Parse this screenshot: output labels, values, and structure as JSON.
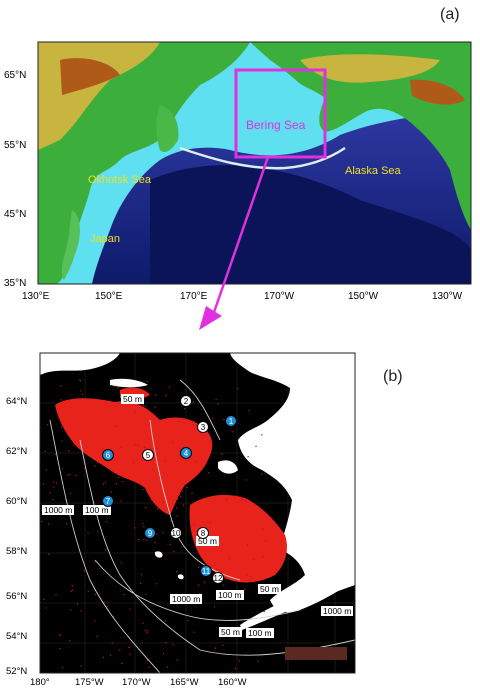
{
  "panel_a": {
    "label": "(a)",
    "lat_ticks": [
      "65°N",
      "55°N",
      "45°N",
      "35°N"
    ],
    "lon_ticks": [
      "130°E",
      "150°E",
      "170°E",
      "170°W",
      "150°W",
      "130°W"
    ],
    "places": {
      "bering": "Bering Sea",
      "okhotsk": "Okhotsk Sea",
      "alaska": "Alaska Sea",
      "japan": "Japan"
    },
    "colors": {
      "box": "#e030e0",
      "place_text": "#f0e020"
    }
  },
  "panel_b": {
    "label": "(b)",
    "lat_ticks": [
      "64°N",
      "62°N",
      "60°N",
      "58°N",
      "56°N",
      "54°N",
      "52°N"
    ],
    "lon_ticks": [
      "180°",
      "175°W",
      "170°W",
      "165°W",
      "160°W"
    ],
    "stations": [
      {
        "id": "1",
        "color": "blue"
      },
      {
        "id": "2",
        "color": "white"
      },
      {
        "id": "3",
        "color": "white"
      },
      {
        "id": "4",
        "color": "blue"
      },
      {
        "id": "5",
        "color": "white"
      },
      {
        "id": "6",
        "color": "blue"
      },
      {
        "id": "7",
        "color": "blue"
      },
      {
        "id": "8",
        "color": "white"
      },
      {
        "id": "9",
        "color": "blue"
      },
      {
        "id": "10",
        "color": "white"
      },
      {
        "id": "11",
        "color": "blue"
      },
      {
        "id": "12",
        "color": "white"
      }
    ],
    "depth_labels": [
      "50 m",
      "1000 m",
      "100 m",
      "50 m",
      "1000 m",
      "100 m",
      "50 m",
      "1000 m",
      "50 m",
      "100 m"
    ],
    "colors": {
      "station_blue": "#1e90d8",
      "bloom": "#e8231c",
      "land": "#ffffff",
      "sea": "#000000"
    }
  }
}
